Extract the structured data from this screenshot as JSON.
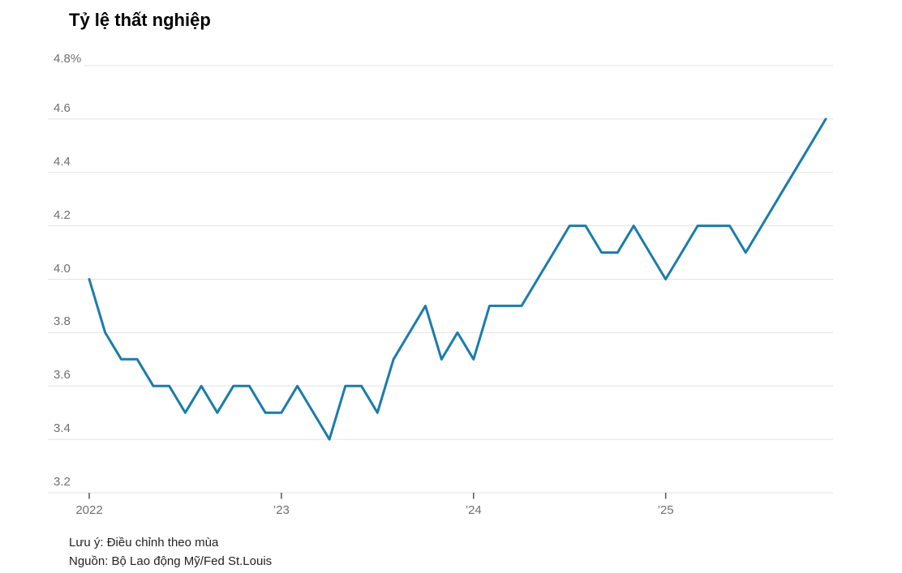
{
  "title": "Tỷ lệ thất nghiệp",
  "notes": {
    "note": "Lưu ý: Điều chỉnh theo mùa",
    "source": "Nguồn: Bộ Lao động Mỹ/Fed St.Louis"
  },
  "colors": {
    "line": "#1b7cab",
    "grid": "#e3e3e3",
    "axis_label": "#6f6f6f",
    "tick": "#555555",
    "note_text": "#222222"
  },
  "chart_data": {
    "type": "line",
    "title": "Tỷ lệ thất nghiệp",
    "unit": "percent",
    "frequency": "monthly",
    "x_start": "2022-01",
    "x_end": "2025-11",
    "x_tick_labels": [
      "2022",
      "’23",
      "’24",
      "’25"
    ],
    "y_ticks": [
      4.8,
      4.6,
      4.4,
      4.2,
      4.0,
      3.8,
      3.6,
      3.4,
      3.2
    ],
    "y_tick_labels": [
      "4.8%",
      "4.6",
      "4.4",
      "4.2",
      "4.0",
      "3.8",
      "3.6",
      "3.4",
      "3.2"
    ],
    "ylim": [
      3.2,
      4.8
    ],
    "grid": "horizontal",
    "legend": "none",
    "series": [
      {
        "name": "Tỷ lệ thất nghiệp (%)",
        "values": [
          4.0,
          3.8,
          3.7,
          3.7,
          3.6,
          3.6,
          3.5,
          3.6,
          3.5,
          3.6,
          3.6,
          3.5,
          3.5,
          3.6,
          3.5,
          3.4,
          3.6,
          3.6,
          3.5,
          3.7,
          3.8,
          3.9,
          3.7,
          3.8,
          3.7,
          3.9,
          3.9,
          3.9,
          4.0,
          4.1,
          4.2,
          4.2,
          4.1,
          4.1,
          4.2,
          4.1,
          4.0,
          4.1,
          4.2,
          4.2,
          4.2,
          4.1,
          4.2,
          4.3,
          4.4,
          4.5,
          4.6
        ]
      }
    ]
  }
}
